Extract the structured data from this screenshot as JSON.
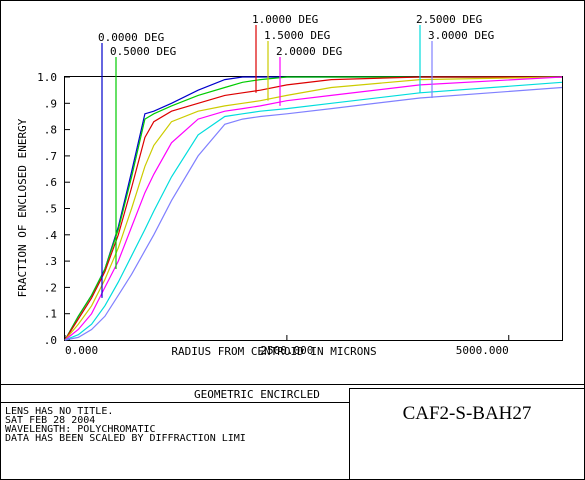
{
  "chart_data": {
    "type": "line",
    "title": "GEOMETRIC ENCIRCLED",
    "xlabel": "RADIUS FROM CENTROID IN MICRONS",
    "ylabel": "FRACTION OF ENCLOSED ENERGY",
    "xlim": [
      0,
      5600
    ],
    "ylim": [
      0,
      1.0
    ],
    "x_ticks": [
      {
        "value": 0,
        "label": "0.000"
      },
      {
        "value": 2500,
        "label": "2500.000"
      },
      {
        "value": 5000,
        "label": "5000.000"
      }
    ],
    "y_ticks": [
      {
        "value": 1.0,
        "label": "1.0"
      },
      {
        "value": 0.9,
        "label": ".9"
      },
      {
        "value": 0.8,
        "label": ".8"
      },
      {
        "value": 0.7,
        "label": ".7"
      },
      {
        "value": 0.6,
        "label": ".6"
      },
      {
        "value": 0.5,
        "label": ".5"
      },
      {
        "value": 0.4,
        "label": ".4"
      },
      {
        "value": 0.3,
        "label": ".3"
      },
      {
        "value": 0.2,
        "label": ".2"
      },
      {
        "value": 0.1,
        "label": ".1"
      },
      {
        "value": 0.0,
        "label": ".0"
      }
    ],
    "grid": false,
    "legend": "top, leader lines to curves",
    "series": [
      {
        "name": "0.0000 DEG",
        "color": "#0000cc",
        "leader_x": 400,
        "leader_y": 0.16,
        "x": [
          0,
          150,
          300,
          450,
          600,
          750,
          900,
          1000,
          1200,
          1500,
          1800,
          2000,
          2200,
          2500,
          3000,
          4000,
          5600
        ],
        "y": [
          0,
          0.09,
          0.17,
          0.27,
          0.43,
          0.64,
          0.86,
          0.87,
          0.9,
          0.95,
          0.99,
          1.0,
          1.0,
          1.0,
          1.0,
          1.0,
          1.0
        ]
      },
      {
        "name": "0.5000 DEG",
        "color": "#00cc00",
        "leader_x": 550,
        "leader_y": 0.27,
        "x": [
          0,
          150,
          300,
          450,
          600,
          750,
          900,
          1000,
          1200,
          1500,
          1800,
          2000,
          2200,
          2500,
          3000,
          4000,
          5600
        ],
        "y": [
          0,
          0.09,
          0.17,
          0.27,
          0.42,
          0.62,
          0.84,
          0.86,
          0.89,
          0.93,
          0.96,
          0.98,
          0.99,
          1.0,
          1.0,
          1.0,
          1.0
        ]
      },
      {
        "name": "1.0000 DEG",
        "color": "#dd0000",
        "leader_x": 2000,
        "leader_y": 0.94,
        "x": [
          0,
          150,
          300,
          450,
          600,
          750,
          900,
          1000,
          1200,
          1500,
          1800,
          2000,
          2200,
          2500,
          3000,
          4000,
          5600
        ],
        "y": [
          0,
          0.08,
          0.16,
          0.26,
          0.4,
          0.58,
          0.77,
          0.83,
          0.87,
          0.9,
          0.93,
          0.94,
          0.95,
          0.97,
          0.99,
          1.0,
          1.0
        ]
      },
      {
        "name": "1.5000 DEG",
        "color": "#cccc00",
        "leader_x": 2170,
        "leader_y": 0.91,
        "x": [
          0,
          150,
          300,
          450,
          600,
          750,
          900,
          1000,
          1200,
          1500,
          1800,
          2000,
          2200,
          2500,
          3000,
          4000,
          5600
        ],
        "y": [
          0,
          0.06,
          0.13,
          0.23,
          0.35,
          0.5,
          0.66,
          0.74,
          0.83,
          0.87,
          0.89,
          0.9,
          0.91,
          0.93,
          0.96,
          0.99,
          1.0
        ]
      },
      {
        "name": "2.0000 DEG",
        "color": "#ff00ff",
        "leader_x": 2300,
        "leader_y": 0.89,
        "x": [
          0,
          150,
          300,
          450,
          600,
          750,
          900,
          1000,
          1200,
          1500,
          1800,
          2000,
          2200,
          2500,
          3000,
          4000,
          5600
        ],
        "y": [
          0,
          0.04,
          0.1,
          0.2,
          0.3,
          0.43,
          0.56,
          0.63,
          0.75,
          0.84,
          0.87,
          0.88,
          0.89,
          0.91,
          0.93,
          0.97,
          1.0
        ]
      },
      {
        "name": "2.5000 DEG",
        "color": "#00dddd",
        "leader_x": 3850,
        "leader_y": 0.94,
        "x": [
          0,
          150,
          300,
          450,
          600,
          750,
          900,
          1000,
          1200,
          1500,
          1800,
          2000,
          2200,
          2500,
          3000,
          4000,
          5600
        ],
        "y": [
          0,
          0.02,
          0.06,
          0.13,
          0.22,
          0.32,
          0.42,
          0.49,
          0.62,
          0.78,
          0.85,
          0.86,
          0.87,
          0.88,
          0.9,
          0.94,
          0.98
        ]
      },
      {
        "name": "3.0000 DEG",
        "color": "#8080ff",
        "leader_x": 4000,
        "leader_y": 0.92,
        "x": [
          0,
          150,
          300,
          450,
          600,
          750,
          900,
          1000,
          1200,
          1500,
          1800,
          2000,
          2200,
          2500,
          3000,
          4000,
          5600
        ],
        "y": [
          0,
          0.01,
          0.04,
          0.09,
          0.17,
          0.25,
          0.34,
          0.4,
          0.53,
          0.7,
          0.82,
          0.84,
          0.85,
          0.86,
          0.88,
          0.92,
          0.96
        ]
      }
    ]
  },
  "info": {
    "lines": [
      "LENS HAS NO TITLE.",
      "SAT FEB 28 2004",
      "WAVELENGTH: POLYCHROMATIC",
      "DATA HAS BEEN SCALED BY DIFFRACTION LIMI"
    ]
  },
  "stamp": {
    "text": "CAF2-S-BAH27"
  }
}
